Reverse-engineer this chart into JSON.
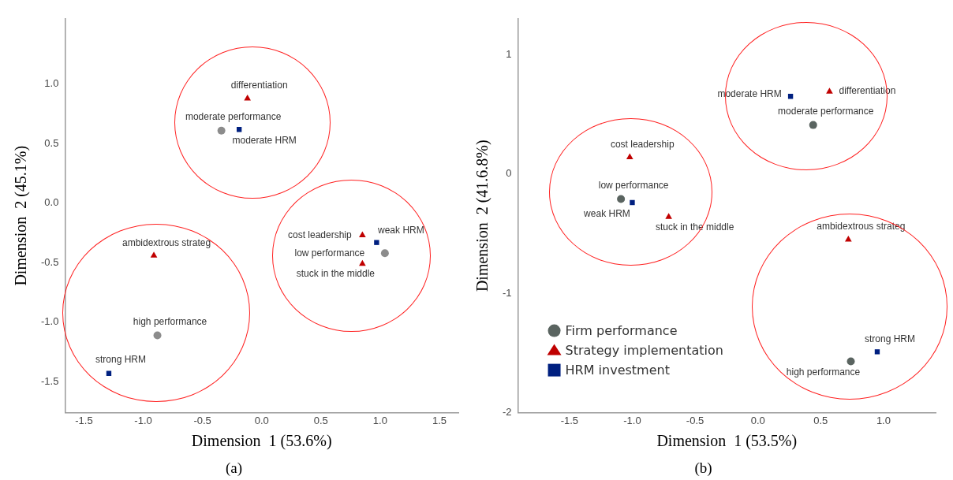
{
  "chart_data": [
    {
      "type": "scatter",
      "title": "(a)",
      "xlabel": "Dimension  1 (53.6%)",
      "ylabel": "Dimension  2 (45.1%)",
      "xlim": [
        -1.66,
        1.66
      ],
      "ylim": [
        -1.76,
        1.55
      ],
      "xticks": [
        -1.5,
        {
          "value": -1,
          "label": "-1.0"
        },
        -0.5,
        {
          "value": 0,
          "label": "0.0"
        },
        0.5,
        {
          "value": 1,
          "label": "1.0"
        },
        1.5
      ],
      "yticks": [
        -1.5,
        {
          "value": -1,
          "label": "-1.0"
        },
        -0.5,
        {
          "value": 0,
          "label": "0.0"
        },
        0.5,
        {
          "value": 1,
          "label": "1.0"
        }
      ],
      "grid": false,
      "series": [
        {
          "marker": "circle",
          "color": "#8c8c8c",
          "x": [
            -0.34,
            1.04,
            -0.88
          ],
          "values": [
            0.61,
            -0.42,
            -1.11
          ]
        },
        {
          "marker": "triangle",
          "color": "#c00000",
          "x": [
            -0.12,
            0.85,
            0.85,
            -0.91
          ],
          "values": [
            0.88,
            -0.27,
            -0.51,
            -0.44
          ]
        },
        {
          "marker": "square",
          "color": "#002080",
          "x": [
            -0.19,
            0.97,
            -1.29
          ],
          "values": [
            0.62,
            -0.33,
            -1.43
          ]
        }
      ],
      "annotations": [
        {
          "text": "differentiation",
          "x": -0.12,
          "y": 0.88
        },
        {
          "text": "moderate performance",
          "x": -0.34,
          "y": 0.61
        },
        {
          "text": "moderate HRM",
          "x": -0.19,
          "y": 0.62
        },
        {
          "text": "cost leadership",
          "x": 0.85,
          "y": -0.27
        },
        {
          "text": "weak HRM",
          "x": 0.97,
          "y": -0.33
        },
        {
          "text": "low performance",
          "x": 1.04,
          "y": -0.42
        },
        {
          "text": "stuck in the middle",
          "x": 0.85,
          "y": -0.51
        },
        {
          "text": "ambidextrous strateg",
          "x": -0.91,
          "y": -0.44
        },
        {
          "text": "high performance",
          "x": -0.88,
          "y": -1.11
        },
        {
          "text": "strong HRM",
          "x": -1.29,
          "y": -1.43
        }
      ]
    },
    {
      "type": "scatter",
      "title": "(b)",
      "xlabel": "Dimension  1 (53.5%)",
      "ylabel": "Dimension  2 (41.6.8%)",
      "xlim": [
        -1.91,
        1.415
      ],
      "ylim": [
        -2,
        1.3
      ],
      "xticks": [
        -1.5,
        {
          "value": -1,
          "label": "-1.0"
        },
        -0.5,
        {
          "value": 0,
          "label": "0.0"
        },
        0.5,
        {
          "value": 1,
          "label": "1.0"
        }
      ],
      "yticks": [
        -2,
        -1,
        0,
        1
      ],
      "grid": false,
      "legend": "bottom left",
      "series": [
        {
          "name": "Firm performance",
          "marker": "circle",
          "color": "#5a6460",
          "x": [
            0.44,
            -1.09,
            0.74
          ],
          "values": [
            0.41,
            -0.21,
            -1.57
          ]
        },
        {
          "name": "Strategy implementation",
          "marker": "triangle",
          "color": "#c00000",
          "x": [
            0.57,
            -1.02,
            -0.71,
            0.72
          ],
          "values": [
            0.69,
            0.14,
            -0.36,
            -0.55
          ]
        },
        {
          "name": "HRM investment",
          "marker": "square",
          "color": "#002080",
          "x": [
            0.26,
            -1.0,
            0.95
          ],
          "values": [
            0.65,
            -0.24,
            -1.49
          ]
        }
      ],
      "annotations": [
        {
          "text": "moderate HRM",
          "x": 0.26,
          "y": 0.65
        },
        {
          "text": "differentiation",
          "x": 0.57,
          "y": 0.69
        },
        {
          "text": "moderate performance",
          "x": 0.44,
          "y": 0.41
        },
        {
          "text": "cost leadership",
          "x": -1.02,
          "y": 0.14
        },
        {
          "text": "low performance",
          "x": -1.09,
          "y": -0.21
        },
        {
          "text": "weak HRM",
          "x": -1.0,
          "y": -0.24
        },
        {
          "text": "stuck in the middle",
          "x": -0.71,
          "y": -0.36
        },
        {
          "text": "ambidextrous strateg",
          "x": 0.72,
          "y": -0.55
        },
        {
          "text": "strong HRM",
          "x": 0.95,
          "y": -1.49
        },
        {
          "text": "high performance",
          "x": 0.74,
          "y": -1.57
        }
      ]
    }
  ]
}
